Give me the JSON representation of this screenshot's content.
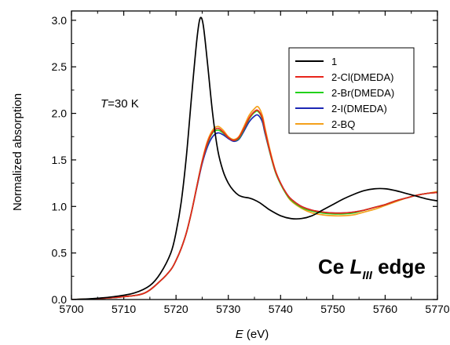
{
  "chart_data": {
    "type": "line",
    "xlabel_var": "E",
    "xlabel_unit": " (eV)",
    "ylabel": "Normalized absorption",
    "xlim": [
      5700,
      5770
    ],
    "ylim": [
      0.0,
      3.1
    ],
    "x_ticks": [
      "5700",
      "5710",
      "5720",
      "5730",
      "5740",
      "5750",
      "5760",
      "5770"
    ],
    "y_ticks": [
      "0.0",
      "0.5",
      "1.0",
      "1.5",
      "2.0",
      "2.5",
      "3.0"
    ],
    "legend_position": "top-right",
    "annotation_temp_var": "T",
    "annotation_temp_value": "=30 K",
    "edge_prefix": "Ce ",
    "edge_L": "L",
    "edge_sub": "III",
    "edge_suffix": " edge",
    "series": [
      {
        "name": "1",
        "color": "#000000",
        "points": [
          [
            5700,
            0.0
          ],
          [
            5704,
            0.01
          ],
          [
            5708,
            0.03
          ],
          [
            5712,
            0.07
          ],
          [
            5715,
            0.15
          ],
          [
            5717,
            0.28
          ],
          [
            5719,
            0.5
          ],
          [
            5720,
            0.72
          ],
          [
            5721,
            1.05
          ],
          [
            5722,
            1.55
          ],
          [
            5723,
            2.2
          ],
          [
            5724,
            2.8
          ],
          [
            5724.6,
            3.02
          ],
          [
            5725.2,
            2.95
          ],
          [
            5726,
            2.55
          ],
          [
            5727,
            2.0
          ],
          [
            5728,
            1.6
          ],
          [
            5729,
            1.38
          ],
          [
            5730,
            1.25
          ],
          [
            5731,
            1.17
          ],
          [
            5732,
            1.12
          ],
          [
            5733,
            1.1
          ],
          [
            5734,
            1.09
          ],
          [
            5735,
            1.07
          ],
          [
            5736,
            1.04
          ],
          [
            5737,
            1.0
          ],
          [
            5738,
            0.96
          ],
          [
            5740,
            0.9
          ],
          [
            5742,
            0.87
          ],
          [
            5744,
            0.87
          ],
          [
            5746,
            0.9
          ],
          [
            5748,
            0.96
          ],
          [
            5750,
            1.02
          ],
          [
            5752,
            1.08
          ],
          [
            5754,
            1.13
          ],
          [
            5756,
            1.17
          ],
          [
            5758,
            1.19
          ],
          [
            5760,
            1.19
          ],
          [
            5762,
            1.17
          ],
          [
            5764,
            1.14
          ],
          [
            5766,
            1.11
          ],
          [
            5768,
            1.08
          ],
          [
            5770,
            1.06
          ]
        ]
      },
      {
        "name": "2-Cl(DMEDA)",
        "color": "#e8251b",
        "points": [
          [
            5700,
            0.0
          ],
          [
            5705,
            0.01
          ],
          [
            5710,
            0.03
          ],
          [
            5714,
            0.07
          ],
          [
            5717,
            0.2
          ],
          [
            5719,
            0.32
          ],
          [
            5720,
            0.42
          ],
          [
            5721,
            0.55
          ],
          [
            5722,
            0.72
          ],
          [
            5723,
            0.95
          ],
          [
            5724,
            1.22
          ],
          [
            5725,
            1.48
          ],
          [
            5726,
            1.68
          ],
          [
            5727,
            1.8
          ],
          [
            5728,
            1.84
          ],
          [
            5729,
            1.8
          ],
          [
            5730,
            1.74
          ],
          [
            5731,
            1.71
          ],
          [
            5732,
            1.74
          ],
          [
            5733,
            1.84
          ],
          [
            5734,
            1.95
          ],
          [
            5735,
            2.02
          ],
          [
            5735.7,
            2.03
          ],
          [
            5736.5,
            1.95
          ],
          [
            5737,
            1.82
          ],
          [
            5738,
            1.58
          ],
          [
            5739,
            1.38
          ],
          [
            5740,
            1.25
          ],
          [
            5741,
            1.15
          ],
          [
            5742,
            1.08
          ],
          [
            5744,
            1.0
          ],
          [
            5746,
            0.96
          ],
          [
            5748,
            0.94
          ],
          [
            5750,
            0.93
          ],
          [
            5752,
            0.93
          ],
          [
            5754,
            0.94
          ],
          [
            5756,
            0.96
          ],
          [
            5758,
            0.99
          ],
          [
            5760,
            1.02
          ],
          [
            5762,
            1.06
          ],
          [
            5764,
            1.09
          ],
          [
            5766,
            1.12
          ],
          [
            5768,
            1.14
          ],
          [
            5770,
            1.15
          ]
        ]
      },
      {
        "name": "2-Br(DMEDA)",
        "color": "#22d11a",
        "points": [
          [
            5700,
            0.0
          ],
          [
            5705,
            0.01
          ],
          [
            5710,
            0.03
          ],
          [
            5714,
            0.07
          ],
          [
            5717,
            0.2
          ],
          [
            5719,
            0.32
          ],
          [
            5720,
            0.42
          ],
          [
            5721,
            0.55
          ],
          [
            5722,
            0.72
          ],
          [
            5723,
            0.95
          ],
          [
            5724,
            1.22
          ],
          [
            5725,
            1.48
          ],
          [
            5726,
            1.67
          ],
          [
            5727,
            1.79
          ],
          [
            5728,
            1.82
          ],
          [
            5729,
            1.79
          ],
          [
            5730,
            1.74
          ],
          [
            5731,
            1.71
          ],
          [
            5732,
            1.73
          ],
          [
            5733,
            1.83
          ],
          [
            5734,
            1.94
          ],
          [
            5735,
            2.01
          ],
          [
            5735.7,
            2.02
          ],
          [
            5736.5,
            1.94
          ],
          [
            5737,
            1.81
          ],
          [
            5738,
            1.57
          ],
          [
            5739,
            1.37
          ],
          [
            5740,
            1.24
          ],
          [
            5741,
            1.14
          ],
          [
            5742,
            1.07
          ],
          [
            5744,
            0.99
          ],
          [
            5746,
            0.95
          ],
          [
            5748,
            0.93
          ],
          [
            5750,
            0.92
          ],
          [
            5752,
            0.92
          ],
          [
            5754,
            0.93
          ],
          [
            5756,
            0.96
          ],
          [
            5758,
            0.99
          ],
          [
            5760,
            1.02
          ],
          [
            5762,
            1.06
          ],
          [
            5764,
            1.09
          ],
          [
            5766,
            1.12
          ],
          [
            5768,
            1.14
          ],
          [
            5770,
            1.15
          ]
        ]
      },
      {
        "name": "2-I(DMEDA)",
        "color": "#1c27b4",
        "points": [
          [
            5700,
            0.0
          ],
          [
            5705,
            0.01
          ],
          [
            5710,
            0.03
          ],
          [
            5714,
            0.07
          ],
          [
            5717,
            0.2
          ],
          [
            5719,
            0.32
          ],
          [
            5720,
            0.42
          ],
          [
            5721,
            0.55
          ],
          [
            5722,
            0.72
          ],
          [
            5723,
            0.95
          ],
          [
            5724,
            1.21
          ],
          [
            5725,
            1.46
          ],
          [
            5726,
            1.64
          ],
          [
            5727,
            1.75
          ],
          [
            5728,
            1.79
          ],
          [
            5729,
            1.77
          ],
          [
            5730,
            1.73
          ],
          [
            5731,
            1.7
          ],
          [
            5732,
            1.72
          ],
          [
            5733,
            1.81
          ],
          [
            5734,
            1.91
          ],
          [
            5735,
            1.97
          ],
          [
            5735.7,
            1.98
          ],
          [
            5736.5,
            1.91
          ],
          [
            5737,
            1.79
          ],
          [
            5738,
            1.57
          ],
          [
            5739,
            1.38
          ],
          [
            5740,
            1.25
          ],
          [
            5741,
            1.15
          ],
          [
            5742,
            1.08
          ],
          [
            5744,
            1.0
          ],
          [
            5746,
            0.96
          ],
          [
            5748,
            0.94
          ],
          [
            5750,
            0.93
          ],
          [
            5752,
            0.93
          ],
          [
            5754,
            0.94
          ],
          [
            5756,
            0.96
          ],
          [
            5758,
            0.99
          ],
          [
            5760,
            1.02
          ],
          [
            5762,
            1.06
          ],
          [
            5764,
            1.09
          ],
          [
            5766,
            1.12
          ],
          [
            5768,
            1.14
          ],
          [
            5770,
            1.15
          ]
        ]
      },
      {
        "name": "2-BQ",
        "color": "#f4a11b",
        "points": [
          [
            5700,
            0.0
          ],
          [
            5705,
            0.01
          ],
          [
            5710,
            0.03
          ],
          [
            5714,
            0.07
          ],
          [
            5717,
            0.2
          ],
          [
            5719,
            0.32
          ],
          [
            5720,
            0.42
          ],
          [
            5721,
            0.55
          ],
          [
            5722,
            0.72
          ],
          [
            5723,
            0.95
          ],
          [
            5724,
            1.22
          ],
          [
            5725,
            1.49
          ],
          [
            5726,
            1.7
          ],
          [
            5727,
            1.82
          ],
          [
            5728,
            1.86
          ],
          [
            5729,
            1.82
          ],
          [
            5730,
            1.75
          ],
          [
            5731,
            1.72
          ],
          [
            5732,
            1.75
          ],
          [
            5733,
            1.86
          ],
          [
            5734,
            1.98
          ],
          [
            5735,
            2.05
          ],
          [
            5735.7,
            2.07
          ],
          [
            5736.5,
            1.98
          ],
          [
            5737,
            1.85
          ],
          [
            5738,
            1.6
          ],
          [
            5739,
            1.39
          ],
          [
            5740,
            1.25
          ],
          [
            5741,
            1.14
          ],
          [
            5742,
            1.06
          ],
          [
            5744,
            0.98
          ],
          [
            5746,
            0.93
          ],
          [
            5748,
            0.91
          ],
          [
            5750,
            0.9
          ],
          [
            5752,
            0.9
          ],
          [
            5754,
            0.91
          ],
          [
            5756,
            0.94
          ],
          [
            5758,
            0.97
          ],
          [
            5760,
            1.01
          ],
          [
            5762,
            1.05
          ],
          [
            5764,
            1.09
          ],
          [
            5766,
            1.12
          ],
          [
            5768,
            1.14
          ],
          [
            5770,
            1.16
          ]
        ]
      }
    ]
  }
}
